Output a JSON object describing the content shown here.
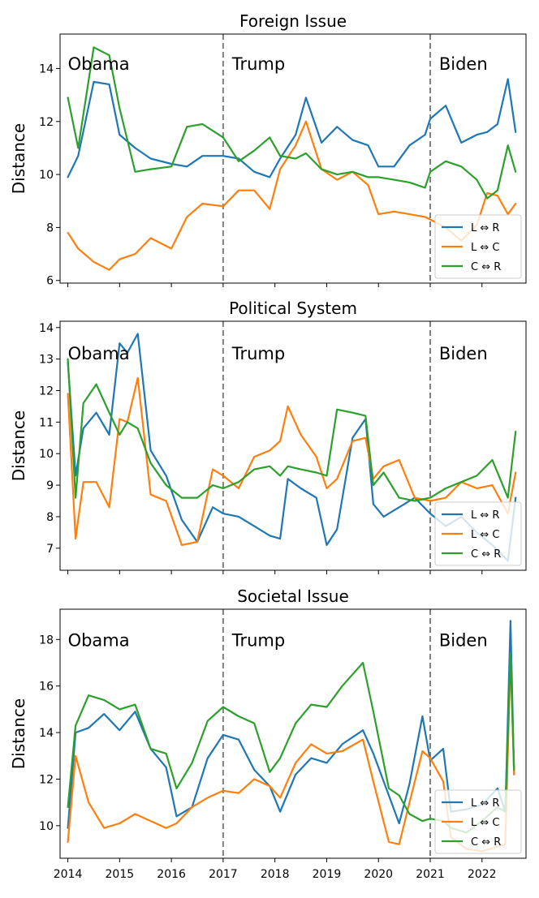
{
  "colors": {
    "L_R": "#1f77b4",
    "L_C": "#ff7f0e",
    "C_R": "#2ca02c"
  },
  "chart_data": [
    {
      "type": "line",
      "title": "Foreign Issue",
      "ylabel": "Distance",
      "xlim": [
        2013.85,
        2022.85
      ],
      "ylim": [
        5.9,
        15.3
      ],
      "yticks": [
        6,
        8,
        10,
        12,
        14
      ],
      "xticks": [
        2014,
        2015,
        2016,
        2017,
        2018,
        2019,
        2020,
        2021,
        2022
      ],
      "xtick_labels_shown": false,
      "vlines": [
        2017,
        2021
      ],
      "annotations": [
        {
          "text": "Obama",
          "x": 2014.0,
          "y": 14.2
        },
        {
          "text": "Trump",
          "x": 2017.17,
          "y": 14.2
        },
        {
          "text": "Biden",
          "x": 2021.17,
          "y": 14.2
        }
      ],
      "legend": {
        "position": "lower-right",
        "entries": [
          "L ⇔ R",
          "L ⇔ C",
          "C ⇔ R"
        ]
      },
      "series": [
        {
          "name": "L ⇔ R",
          "color_key": "L_R",
          "x": [
            2014,
            2014.2,
            2014.5,
            2014.8,
            2015,
            2015.3,
            2015.6,
            2016,
            2016.3,
            2016.6,
            2017,
            2017.3,
            2017.6,
            2017.9,
            2018.1,
            2018.4,
            2018.6,
            2018.9,
            2019.2,
            2019.5,
            2019.8,
            2020,
            2020.3,
            2020.6,
            2020.9,
            2021,
            2021.3,
            2021.6,
            2021.9,
            2022.1,
            2022.3,
            2022.5,
            2022.65
          ],
          "y": [
            9.9,
            10.7,
            13.5,
            13.4,
            11.5,
            11,
            10.6,
            10.4,
            10.3,
            10.7,
            10.7,
            10.6,
            10.1,
            9.9,
            10.6,
            11.5,
            12.9,
            11.2,
            11.8,
            11.3,
            11.1,
            10.3,
            10.3,
            11.1,
            11.5,
            12.1,
            12.6,
            11.2,
            11.5,
            11.6,
            11.9,
            13.6,
            11.6
          ]
        },
        {
          "name": "L ⇔ C",
          "color_key": "L_C",
          "x": [
            2014,
            2014.2,
            2014.5,
            2014.8,
            2015,
            2015.3,
            2015.6,
            2016,
            2016.3,
            2016.6,
            2017,
            2017.3,
            2017.6,
            2017.9,
            2018.1,
            2018.4,
            2018.6,
            2018.9,
            2019.2,
            2019.5,
            2019.8,
            2020,
            2020.3,
            2020.6,
            2020.9,
            2021,
            2021.3,
            2021.6,
            2021.9,
            2022.1,
            2022.3,
            2022.5,
            2022.65
          ],
          "y": [
            7.8,
            7.2,
            6.7,
            6.4,
            6.8,
            7,
            7.6,
            7.2,
            8.4,
            8.9,
            8.8,
            9.4,
            9.4,
            8.7,
            10.2,
            11.1,
            12,
            10.2,
            9.8,
            10.1,
            9.6,
            8.5,
            8.6,
            8.5,
            8.4,
            8.3,
            8,
            7.5,
            8.1,
            9.3,
            9.2,
            8.5,
            8.9
          ]
        },
        {
          "name": "C ⇔ R",
          "color_key": "C_R",
          "x": [
            2014,
            2014.2,
            2014.5,
            2014.8,
            2015,
            2015.3,
            2015.6,
            2016,
            2016.3,
            2016.6,
            2017,
            2017.3,
            2017.6,
            2017.9,
            2018.1,
            2018.4,
            2018.6,
            2018.9,
            2019.2,
            2019.5,
            2019.8,
            2020,
            2020.3,
            2020.6,
            2020.9,
            2021,
            2021.3,
            2021.6,
            2021.9,
            2022.1,
            2022.3,
            2022.5,
            2022.65
          ],
          "y": [
            12.9,
            11,
            14.8,
            14.5,
            12.5,
            10.1,
            10.2,
            10.3,
            11.8,
            11.9,
            11.4,
            10.5,
            10.9,
            11.4,
            10.7,
            10.6,
            10.8,
            10.2,
            10,
            10.1,
            9.9,
            9.9,
            9.8,
            9.7,
            9.5,
            10.1,
            10.5,
            10.3,
            9.8,
            9.1,
            9.4,
            11.1,
            10.1
          ]
        }
      ]
    },
    {
      "type": "line",
      "title": "Political System",
      "ylabel": "Distance",
      "xlim": [
        2013.85,
        2022.85
      ],
      "ylim": [
        6.3,
        14.2
      ],
      "yticks": [
        7,
        8,
        9,
        10,
        11,
        12,
        13,
        14
      ],
      "xticks": [
        2014,
        2015,
        2016,
        2017,
        2018,
        2019,
        2020,
        2021,
        2022
      ],
      "xtick_labels_shown": false,
      "vlines": [
        2017,
        2021
      ],
      "annotations": [
        {
          "text": "Obama",
          "x": 2014.0,
          "y": 13.2
        },
        {
          "text": "Trump",
          "x": 2017.17,
          "y": 13.2
        },
        {
          "text": "Biden",
          "x": 2021.17,
          "y": 13.2
        }
      ],
      "legend": {
        "position": "lower-right",
        "entries": [
          "L ⇔ R",
          "L ⇔ C",
          "C ⇔ R"
        ]
      },
      "series": [
        {
          "name": "L ⇔ R",
          "color_key": "L_R",
          "x": [
            2014,
            2014.15,
            2014.3,
            2014.55,
            2014.8,
            2015,
            2015.15,
            2015.35,
            2015.6,
            2015.9,
            2016.2,
            2016.5,
            2016.8,
            2017,
            2017.3,
            2017.6,
            2017.9,
            2018.1,
            2018.25,
            2018.5,
            2018.8,
            2019,
            2019.2,
            2019.5,
            2019.75,
            2019.9,
            2020.1,
            2020.4,
            2020.7,
            2021,
            2021.3,
            2021.6,
            2021.9,
            2022.2,
            2022.5,
            2022.65
          ],
          "y": [
            12.9,
            9.3,
            10.8,
            11.3,
            10.6,
            13.5,
            13.2,
            13.8,
            10.1,
            9.3,
            7.9,
            7.2,
            8.3,
            8.1,
            8,
            7.7,
            7.4,
            7.3,
            9.2,
            8.9,
            8.6,
            7.1,
            7.6,
            10.5,
            11.1,
            8.4,
            8,
            8.3,
            8.6,
            8.1,
            7.7,
            8,
            7.5,
            7.1,
            6.6,
            8.6
          ]
        },
        {
          "name": "L ⇔ C",
          "color_key": "L_C",
          "x": [
            2014,
            2014.15,
            2014.3,
            2014.55,
            2014.8,
            2015,
            2015.15,
            2015.35,
            2015.6,
            2015.9,
            2016.2,
            2016.5,
            2016.8,
            2017,
            2017.3,
            2017.6,
            2017.9,
            2018.1,
            2018.25,
            2018.5,
            2018.8,
            2019,
            2019.2,
            2019.5,
            2019.75,
            2019.9,
            2020.1,
            2020.4,
            2020.7,
            2021,
            2021.3,
            2021.6,
            2021.9,
            2022.2,
            2022.5,
            2022.65
          ],
          "y": [
            11.9,
            7.3,
            9.1,
            9.1,
            8.3,
            11.1,
            11,
            12.4,
            8.7,
            8.5,
            7.1,
            7.2,
            9.5,
            9.3,
            8.9,
            9.9,
            10.1,
            10.4,
            11.5,
            10.6,
            9.9,
            8.9,
            9.2,
            10.4,
            10.5,
            9.2,
            9.6,
            9.8,
            8.6,
            8.5,
            8.6,
            9.1,
            8.9,
            9,
            8.1,
            9.4
          ]
        },
        {
          "name": "C ⇔ R",
          "color_key": "C_R",
          "x": [
            2014,
            2014.15,
            2014.3,
            2014.55,
            2014.8,
            2015,
            2015.15,
            2015.35,
            2015.6,
            2015.9,
            2016.2,
            2016.5,
            2016.8,
            2017,
            2017.3,
            2017.6,
            2017.9,
            2018.1,
            2018.25,
            2018.5,
            2018.8,
            2019,
            2019.2,
            2019.5,
            2019.75,
            2019.9,
            2020.1,
            2020.4,
            2020.7,
            2021,
            2021.3,
            2021.6,
            2021.9,
            2022.2,
            2022.5,
            2022.65
          ],
          "y": [
            13,
            8.6,
            11.6,
            12.2,
            11.3,
            10.6,
            11,
            10.8,
            9.7,
            9,
            8.6,
            8.6,
            9,
            8.9,
            9.1,
            9.5,
            9.6,
            9.3,
            9.6,
            9.5,
            9.4,
            9.3,
            11.4,
            11.3,
            11.2,
            9,
            9.4,
            8.6,
            8.5,
            8.6,
            8.9,
            9.1,
            9.3,
            9.8,
            8.6,
            10.7
          ]
        }
      ]
    },
    {
      "type": "line",
      "title": "Societal Issue",
      "ylabel": "Distance",
      "xlim": [
        2013.85,
        2022.85
      ],
      "ylim": [
        8.6,
        19.3
      ],
      "yticks": [
        10,
        12,
        14,
        16,
        18
      ],
      "xticks": [
        2014,
        2015,
        2016,
        2017,
        2018,
        2019,
        2020,
        2021,
        2022
      ],
      "xtick_labels": [
        "2014",
        "2015",
        "2016",
        "2017",
        "2018",
        "2019",
        "2020",
        "2021",
        "2022"
      ],
      "xtick_labels_shown": true,
      "vlines": [
        2017,
        2021
      ],
      "annotations": [
        {
          "text": "Obama",
          "x": 2014.0,
          "y": 18.0
        },
        {
          "text": "Trump",
          "x": 2017.17,
          "y": 18.0
        },
        {
          "text": "Biden",
          "x": 2021.17,
          "y": 18.0
        }
      ],
      "legend": {
        "position": "lower-right",
        "entries": [
          "L ⇔ R",
          "L ⇔ C",
          "C ⇔ R"
        ]
      },
      "series": [
        {
          "name": "L ⇔ R",
          "color_key": "L_R",
          "x": [
            2014,
            2014.15,
            2014.4,
            2014.7,
            2015,
            2015.3,
            2015.6,
            2015.9,
            2016.1,
            2016.4,
            2016.7,
            2017,
            2017.3,
            2017.6,
            2017.9,
            2018.1,
            2018.4,
            2018.7,
            2019,
            2019.3,
            2019.7,
            2019.9,
            2020.2,
            2020.4,
            2020.6,
            2020.85,
            2021,
            2021.25,
            2021.4,
            2021.7,
            2022,
            2022.3,
            2022.45,
            2022.55,
            2022.62
          ],
          "y": [
            9.9,
            14,
            14.2,
            14.8,
            14.1,
            14.9,
            13.3,
            12.5,
            10.4,
            10.8,
            12.9,
            13.9,
            13.7,
            12.4,
            11.7,
            10.6,
            12.2,
            12.9,
            12.7,
            13.5,
            14.1,
            13.1,
            11.3,
            10.1,
            11.8,
            14.7,
            12.8,
            13.3,
            10.6,
            10.7,
            10.9,
            11.6,
            10.6,
            18.8,
            12.2
          ]
        },
        {
          "name": "L ⇔ C",
          "color_key": "L_C",
          "x": [
            2014,
            2014.15,
            2014.4,
            2014.7,
            2015,
            2015.3,
            2015.6,
            2015.9,
            2016.1,
            2016.4,
            2016.7,
            2017,
            2017.3,
            2017.6,
            2017.9,
            2018.1,
            2018.4,
            2018.7,
            2019,
            2019.3,
            2019.7,
            2019.9,
            2020.2,
            2020.4,
            2020.6,
            2020.85,
            2021,
            2021.25,
            2021.4,
            2021.7,
            2022,
            2022.3,
            2022.45,
            2022.55,
            2022.62
          ],
          "y": [
            9.3,
            13,
            11,
            9.9,
            10.1,
            10.5,
            10.2,
            9.9,
            10.1,
            10.8,
            11.2,
            11.5,
            11.4,
            12,
            11.7,
            11.2,
            12.7,
            13.5,
            13.1,
            13.2,
            13.7,
            11.9,
            9.3,
            9.2,
            11,
            13.2,
            12.9,
            11.9,
            9.5,
            9,
            8.9,
            9.1,
            9.2,
            17.3,
            12.2
          ]
        },
        {
          "name": "C ⇔ R",
          "color_key": "C_R",
          "x": [
            2014,
            2014.15,
            2014.4,
            2014.7,
            2015,
            2015.3,
            2015.6,
            2015.9,
            2016.1,
            2016.4,
            2016.7,
            2017,
            2017.3,
            2017.6,
            2017.9,
            2018.1,
            2018.4,
            2018.7,
            2019,
            2019.3,
            2019.7,
            2019.9,
            2020.2,
            2020.4,
            2020.6,
            2020.85,
            2021,
            2021.25,
            2021.4,
            2021.7,
            2022,
            2022.3,
            2022.45,
            2022.55,
            2022.62
          ],
          "y": [
            10.8,
            14.3,
            15.6,
            15.4,
            15,
            15.2,
            13.3,
            13.1,
            11.6,
            12.7,
            14.5,
            15.1,
            14.7,
            14.4,
            12.3,
            12.9,
            14.4,
            15.2,
            15.1,
            16,
            17,
            14.9,
            11.6,
            11.3,
            10.5,
            10.2,
            10.3,
            10.2,
            9.9,
            9.7,
            10.2,
            10.8,
            10.6,
            17.4,
            12.4
          ]
        }
      ]
    }
  ]
}
